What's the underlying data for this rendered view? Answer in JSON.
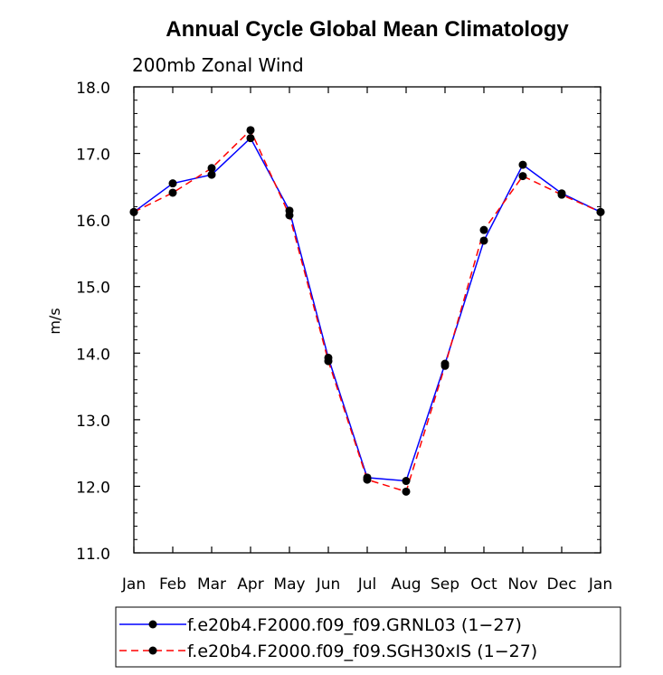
{
  "chart_data": {
    "type": "line",
    "title": "Annual Cycle Global Mean Climatology",
    "subtitle": "200mb Zonal Wind",
    "ylabel": "m/s",
    "xlabel": "",
    "categories": [
      "Jan",
      "Feb",
      "Mar",
      "Apr",
      "May",
      "Jun",
      "Jul",
      "Aug",
      "Sep",
      "Oct",
      "Nov",
      "Dec",
      "Jan"
    ],
    "ylim": [
      11.0,
      18.0
    ],
    "yticks": [
      "11.0",
      "12.0",
      "13.0",
      "14.0",
      "15.0",
      "16.0",
      "17.0",
      "18.0"
    ],
    "series": [
      {
        "name": "f.e20b4.F2000.f09_f09.GRNL03 (1−27)",
        "color": "#0000ff",
        "dash": "solid",
        "values": [
          16.12,
          16.55,
          16.68,
          17.23,
          16.14,
          13.93,
          12.13,
          12.08,
          13.84,
          15.69,
          16.83,
          16.4,
          16.12
        ]
      },
      {
        "name": "f.e20b4.F2000.f09_f09.SGH30xIS (1−27)",
        "color": "#ff0000",
        "dash": "dashed",
        "values": [
          16.12,
          16.41,
          16.78,
          17.35,
          16.07,
          13.88,
          12.1,
          11.92,
          13.81,
          15.85,
          16.66,
          16.38,
          16.12
        ]
      }
    ],
    "legend": "bottom",
    "grid": false
  }
}
